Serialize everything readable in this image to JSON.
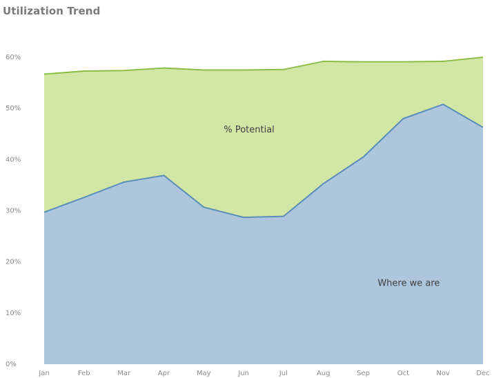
{
  "chart_data": {
    "type": "area",
    "title": "Utilization Trend",
    "categories": [
      "Jan",
      "Feb",
      "Mar",
      "Apr",
      "May",
      "Jun",
      "Jul",
      "Aug",
      "Sep",
      "Oct",
      "Nov",
      "Dec"
    ],
    "series": [
      {
        "name": "Where we are",
        "values": [
          29.7,
          32.6,
          35.6,
          36.9,
          30.7,
          28.7,
          28.9,
          35.3,
          40.5,
          48.0,
          50.8,
          46.3
        ],
        "color": "#adc6dc",
        "line_color": "#5b8db8"
      },
      {
        "name": "% Potential",
        "values": [
          56.7,
          57.3,
          57.4,
          57.9,
          57.5,
          57.5,
          57.6,
          59.2,
          59.1,
          59.1,
          59.2,
          60.0
        ],
        "color": "#d2e6a5",
        "line_color": "#8dbd45"
      }
    ],
    "yticks": [
      "0%",
      "10%",
      "20%",
      "30%",
      "40%",
      "50%",
      "60%"
    ],
    "ytick_values": [
      0,
      10,
      20,
      30,
      40,
      50,
      60
    ],
    "ylim": [
      0,
      60
    ],
    "grid": false,
    "annotations": [
      {
        "text": "% Potential",
        "category": "Jun",
        "value": 46.0
      },
      {
        "text": "Where we are",
        "category": "Oct",
        "value": 16.0
      }
    ]
  }
}
